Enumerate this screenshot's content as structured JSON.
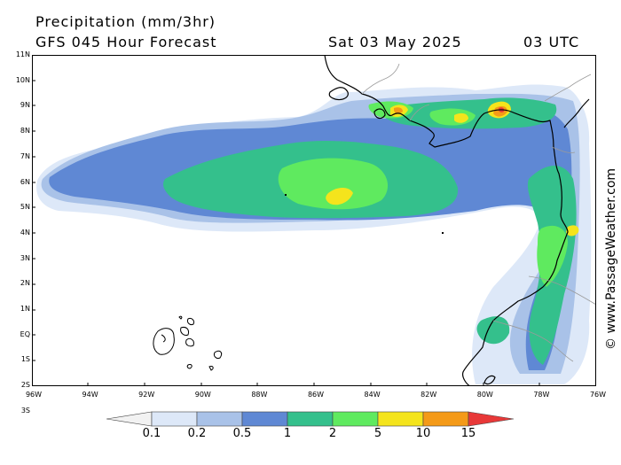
{
  "title": "Precipitation (mm/3hr)",
  "subtitle": "GFS 045 Hour Forecast",
  "date": "Sat 03 May 2025",
  "time": "03 UTC",
  "copyright": "© www.PassageWeather.com",
  "y_ticks": [
    "11N",
    "10N",
    "9N",
    "8N",
    "7N",
    "6N",
    "5N",
    "4N",
    "3N",
    "2N",
    "1N",
    "EQ",
    "1S",
    "2S",
    "3S"
  ],
  "x_ticks": [
    "96W",
    "94W",
    "92W",
    "90W",
    "88W",
    "86W",
    "84W",
    "82W",
    "80W",
    "78W",
    "76W"
  ],
  "legend_levels": [
    "0.1",
    "0.2",
    "0.5",
    "1",
    "2",
    "5",
    "10",
    "15"
  ],
  "legend_colors": [
    "#f2f2f2",
    "#dde8f8",
    "#a9c2e8",
    "#5f88d4",
    "#34c08c",
    "#5fea5f",
    "#f4e41c",
    "#f49a18",
    "#e83838"
  ],
  "map_colors": {
    "ocean": "#ffffff",
    "coast": "#000000",
    "border": "#9a9a9a"
  }
}
